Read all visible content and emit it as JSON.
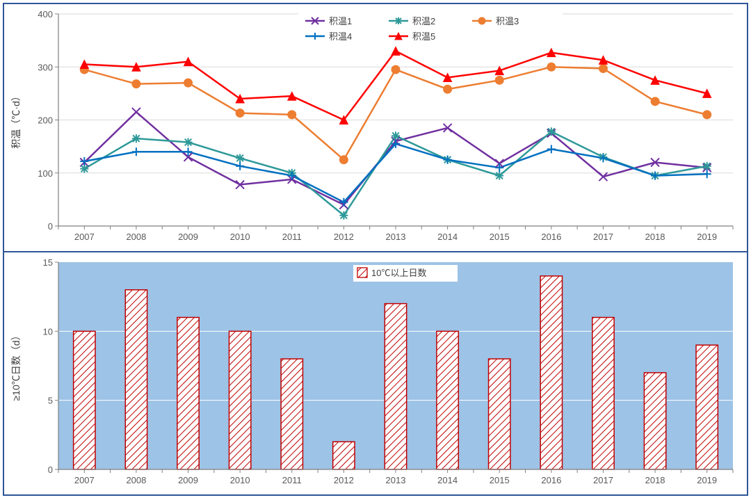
{
  "frame_border_color": "#2f5597",
  "background_color": "#ffffff",
  "categories": [
    "2007",
    "2008",
    "2009",
    "2010",
    "2011",
    "2012",
    "2013",
    "2014",
    "2015",
    "2016",
    "2017",
    "2018",
    "2019"
  ],
  "line_chart": {
    "type": "line",
    "ylabel": "积温（℃·d）",
    "label_fontsize": 14,
    "tick_fontsize": 13,
    "ylim": [
      0,
      400
    ],
    "ytick_step": 100,
    "grid_color": "#d9d9d9",
    "axis_color": "#808080",
    "line_width": 2.5,
    "marker_size": 6,
    "legend": {
      "items": [
        "积温1",
        "积温2",
        "积温3",
        "积温4",
        "积温5"
      ],
      "fontsize": 13,
      "position": "top-center",
      "border_color": "#808080",
      "bg": "#ffffff"
    },
    "series": [
      {
        "name": "积温1",
        "color": "#7030a0",
        "marker": "x",
        "values": [
          120,
          215,
          130,
          78,
          88,
          40,
          160,
          185,
          118,
          175,
          93,
          120,
          110
        ]
      },
      {
        "name": "积温2",
        "color": "#2e9999",
        "marker": "asterisk",
        "values": [
          108,
          165,
          158,
          128,
          100,
          20,
          170,
          125,
          95,
          178,
          130,
          95,
          113
        ]
      },
      {
        "name": "积温3",
        "color": "#ed7d31",
        "marker": "circle-filled",
        "values": [
          295,
          268,
          270,
          213,
          210,
          125,
          295,
          258,
          275,
          300,
          297,
          235,
          210
        ]
      },
      {
        "name": "积温4",
        "color": "#0070c0",
        "marker": "plus",
        "values": [
          122,
          140,
          140,
          113,
          95,
          45,
          155,
          125,
          110,
          145,
          128,
          95,
          98
        ]
      },
      {
        "name": "积温5",
        "color": "#ff0000",
        "marker": "triangle-filled",
        "values": [
          305,
          300,
          310,
          240,
          245,
          200,
          330,
          280,
          293,
          327,
          313,
          275,
          250
        ]
      }
    ]
  },
  "bar_chart": {
    "type": "bar",
    "ylabel": "≥10℃日数（d）",
    "label_fontsize": 14,
    "tick_fontsize": 13,
    "ylim": [
      0,
      15
    ],
    "ytick_step": 5,
    "plot_bg": "#9dc3e6",
    "axis_color": "#808080",
    "grid_color": "#ffffff",
    "bar_border_color": "#c00000",
    "bar_fill": "#ffffff",
    "hatch_color": "#c00000",
    "bar_width_ratio": 0.42,
    "legend": {
      "label": "10℃以上日数",
      "fontsize": 13,
      "border_color": "#808080",
      "bg": "#ffffff"
    },
    "values": [
      10,
      13,
      11,
      10,
      8,
      2,
      12,
      10,
      8,
      14,
      11,
      7,
      9
    ]
  }
}
